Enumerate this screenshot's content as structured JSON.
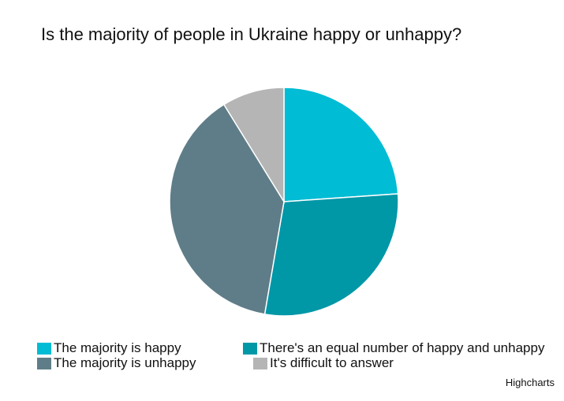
{
  "chart": {
    "title": "Is the majority of people in Ukraine happy or unhappy?",
    "credits": "Highcharts"
  },
  "chart_data": {
    "type": "pie",
    "title": "Is the majority of people in Ukraine happy or unhappy?",
    "legend": "bottom",
    "series": [
      {
        "values": [
          {
            "label": "The majority is happy",
            "value": 23.9,
            "color": "#00bcd4"
          },
          {
            "label": "There's an equal number of happy and unhappy",
            "value": 28.8,
            "color": "#0097a7"
          },
          {
            "label": "The majority is unhappy",
            "value": 38.5,
            "color": "#5f7d88"
          },
          {
            "label": "It's difficult to answer",
            "value": 8.8,
            "color": "#b5b5b5"
          }
        ]
      }
    ]
  }
}
